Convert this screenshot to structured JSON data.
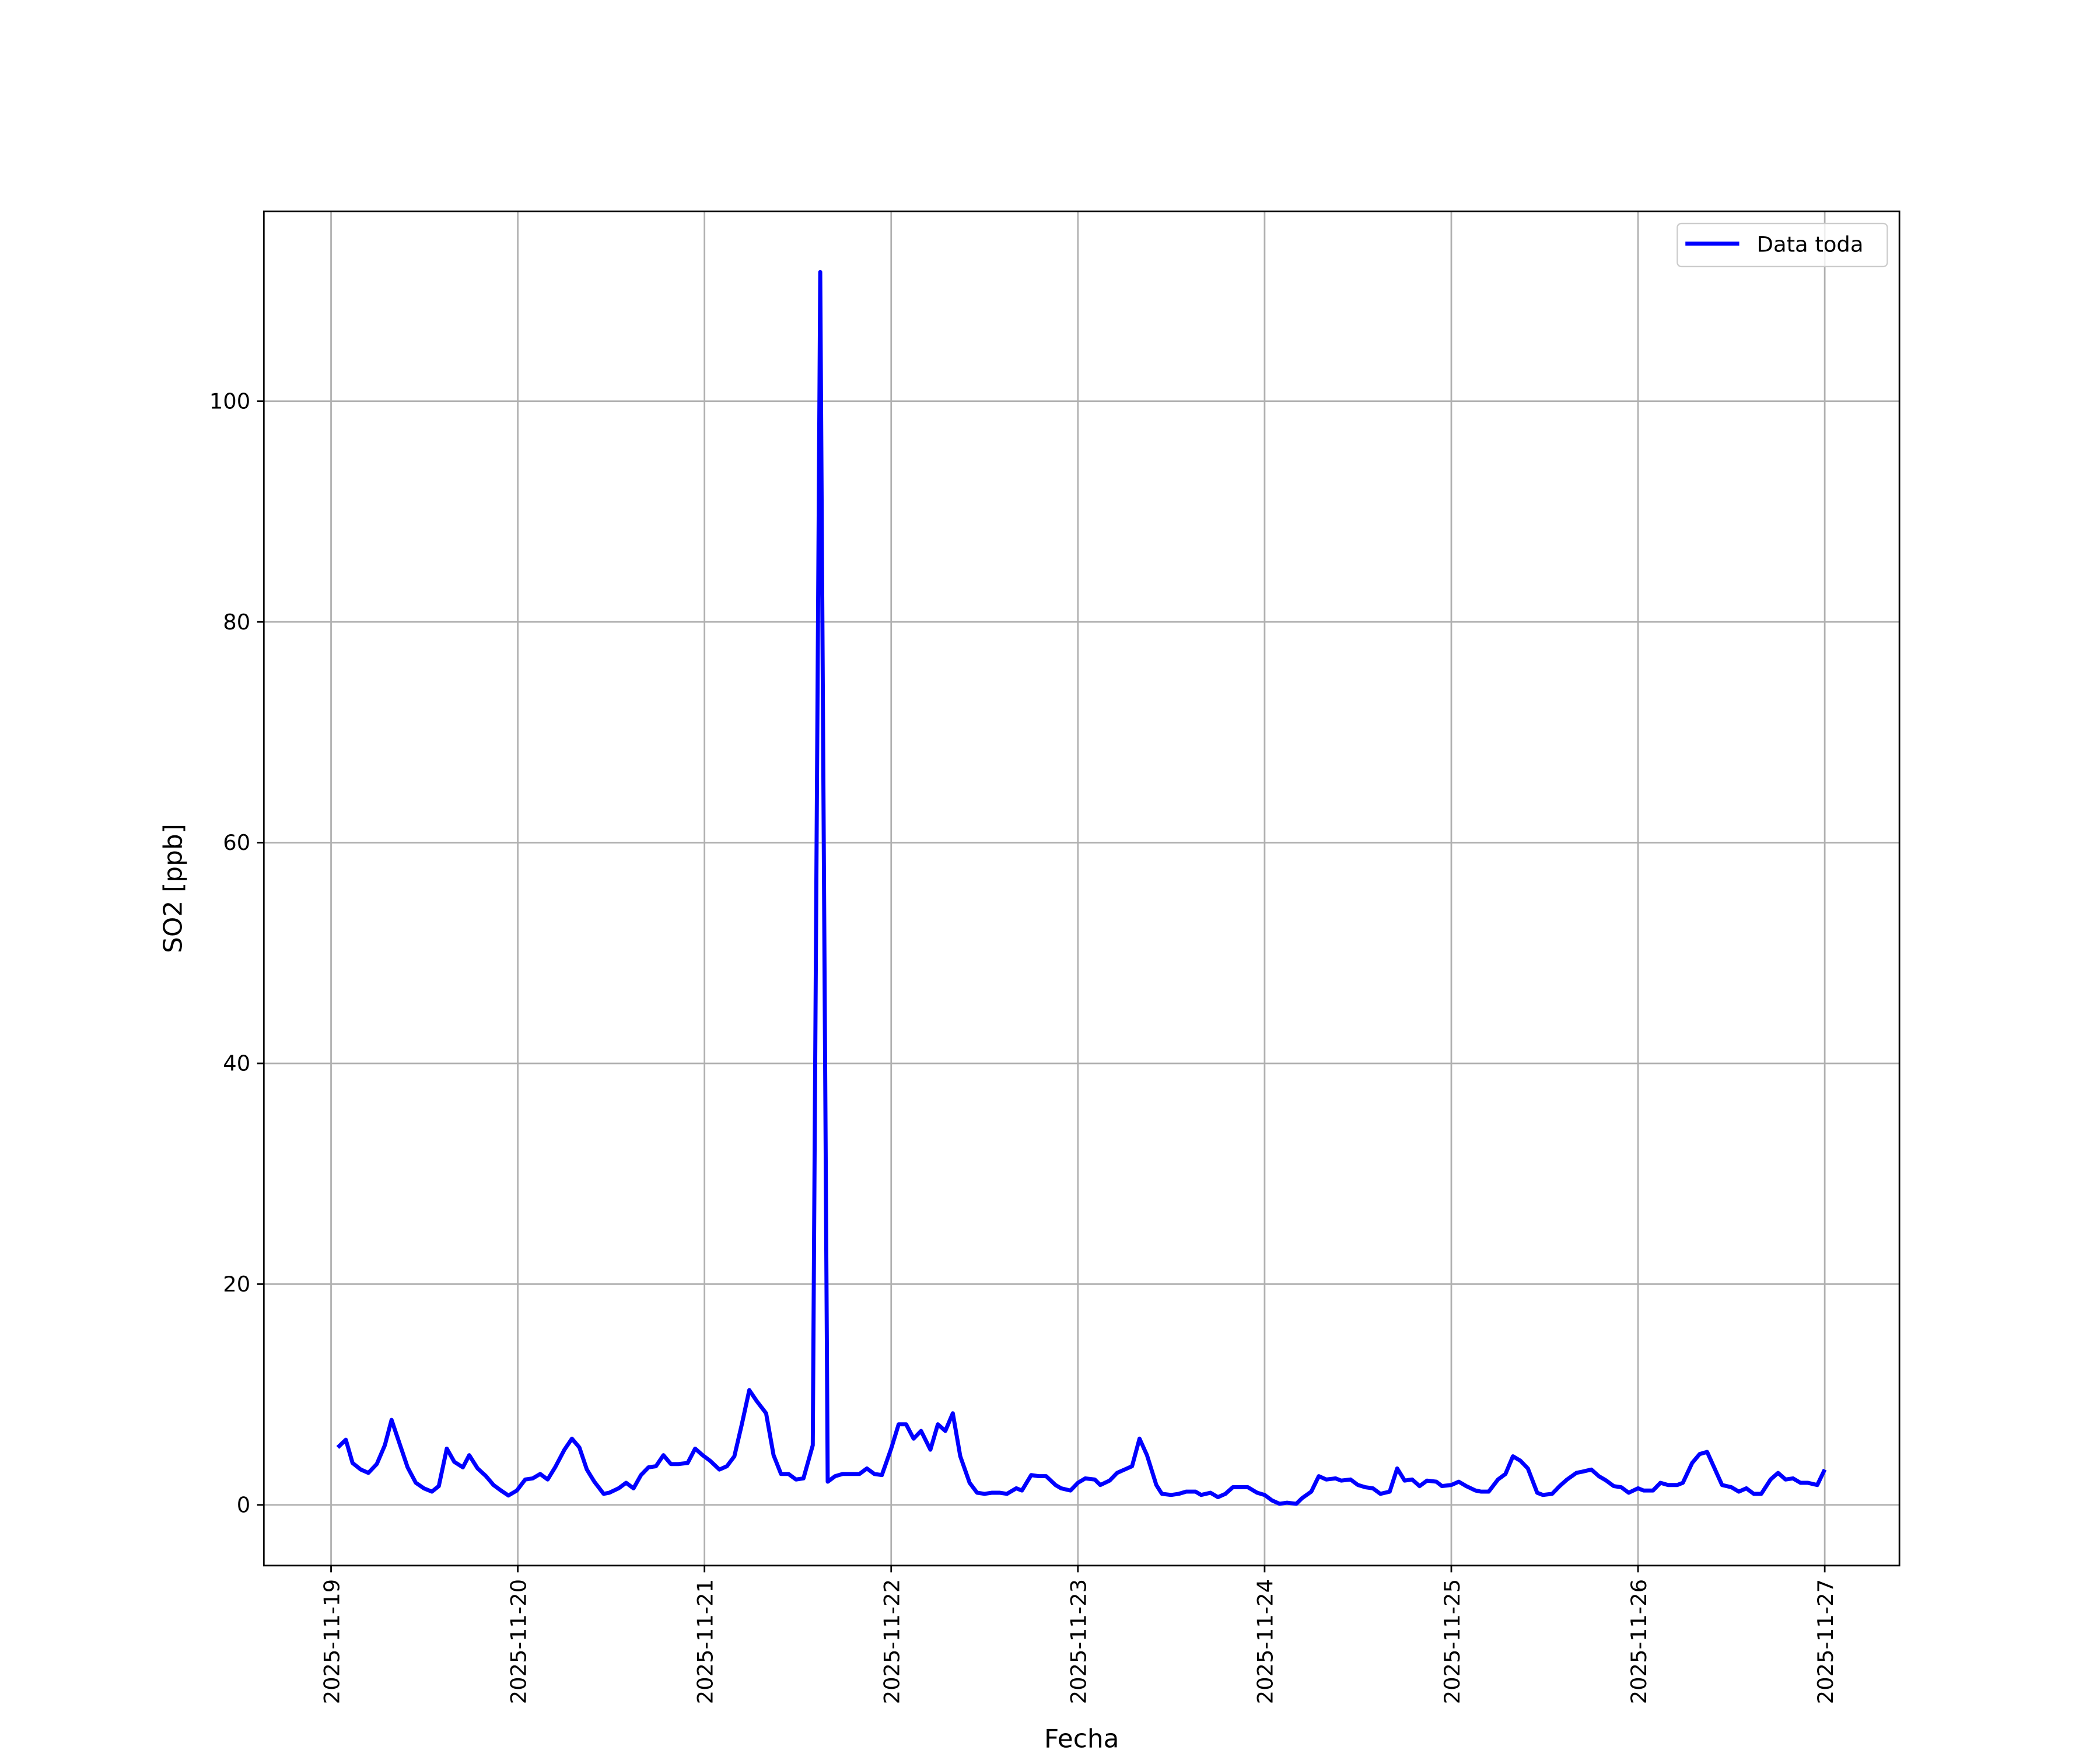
{
  "chart_data": {
    "type": "line",
    "xlabel": "Fecha",
    "ylabel": "SO2 [ppb]",
    "xlim": [
      -0.36,
      8.4
    ],
    "ylim": [
      -5.5,
      117.2
    ],
    "xticks": [
      {
        "value": 0,
        "label": "2025-11-19"
      },
      {
        "value": 1,
        "label": "2025-11-20"
      },
      {
        "value": 2,
        "label": "2025-11-21"
      },
      {
        "value": 3,
        "label": "2025-11-22"
      },
      {
        "value": 4,
        "label": "2025-11-23"
      },
      {
        "value": 5,
        "label": "2025-11-24"
      },
      {
        "value": 6,
        "label": "2025-11-25"
      },
      {
        "value": 7,
        "label": "2025-11-26"
      },
      {
        "value": 8,
        "label": "2025-11-27"
      }
    ],
    "yticks": [
      0,
      20,
      40,
      60,
      80,
      100
    ],
    "grid": true,
    "legend": "upper right",
    "x": [
      0.036,
      0.079,
      0.115,
      0.159,
      0.2,
      0.245,
      0.288,
      0.324,
      0.368,
      0.41,
      0.454,
      0.497,
      0.54,
      0.577,
      0.62,
      0.66,
      0.706,
      0.74,
      0.785,
      0.83,
      0.87,
      0.91,
      0.95,
      0.995,
      1.04,
      1.08,
      1.12,
      1.16,
      1.2,
      1.25,
      1.29,
      1.33,
      1.37,
      1.41,
      1.46,
      1.49,
      1.54,
      1.58,
      1.62,
      1.66,
      1.7,
      1.74,
      1.78,
      1.82,
      1.86,
      1.91,
      1.95,
      1.99,
      2.03,
      2.08,
      2.12,
      2.16,
      2.2,
      2.24,
      2.28,
      2.33,
      2.37,
      2.41,
      2.45,
      2.49,
      2.53,
      2.58,
      2.62,
      2.66,
      2.7,
      2.74,
      2.79,
      2.83,
      2.87,
      2.91,
      2.95,
      3.0,
      3.04,
      3.08,
      3.12,
      3.16,
      3.21,
      3.25,
      3.29,
      3.33,
      3.37,
      3.42,
      3.46,
      3.5,
      3.54,
      3.58,
      3.62,
      3.67,
      3.7,
      3.75,
      3.79,
      3.83,
      3.88,
      3.91,
      3.96,
      4.0,
      4.04,
      4.09,
      4.12,
      4.17,
      4.21,
      4.25,
      4.29,
      4.33,
      4.37,
      4.42,
      4.45,
      4.5,
      4.54,
      4.58,
      4.63,
      4.66,
      4.71,
      4.75,
      4.79,
      4.83,
      4.87,
      4.91,
      4.96,
      5.0,
      5.04,
      5.08,
      5.12,
      5.17,
      5.2,
      5.25,
      5.29,
      5.33,
      5.38,
      5.41,
      5.46,
      5.5,
      5.54,
      5.58,
      5.62,
      5.67,
      5.71,
      5.75,
      5.79,
      5.83,
      5.87,
      5.92,
      5.95,
      6.0,
      6.04,
      6.08,
      6.13,
      6.16,
      6.2,
      6.25,
      6.29,
      6.33,
      6.37,
      6.41,
      6.46,
      6.49,
      6.54,
      6.58,
      6.62,
      6.67,
      6.7,
      6.75,
      6.79,
      6.83,
      6.87,
      6.91,
      6.95,
      7.0,
      7.03,
      7.08,
      7.12,
      7.16,
      7.21,
      7.24,
      7.29,
      7.33,
      7.37,
      7.41,
      7.45,
      7.5,
      7.54,
      7.58,
      7.62,
      7.66,
      7.71,
      7.75,
      7.79,
      7.83,
      7.87,
      7.91,
      7.96,
      8.0
    ],
    "series": [
      {
        "name": "Data toda",
        "color": "#0000ff",
        "values": [
          5.2,
          5.9,
          3.8,
          3.2,
          2.9,
          3.7,
          5.4,
          7.7,
          5.5,
          3.4,
          2.0,
          1.5,
          1.2,
          1.7,
          5.1,
          3.9,
          3.4,
          4.5,
          3.3,
          2.6,
          1.8,
          1.3,
          0.85,
          1.3,
          2.3,
          2.4,
          2.8,
          2.3,
          3.4,
          5.0,
          6.0,
          5.2,
          3.2,
          2.1,
          1.0,
          1.1,
          1.5,
          2.0,
          1.5,
          2.7,
          3.4,
          3.5,
          4.5,
          3.7,
          3.7,
          3.8,
          5.1,
          4.5,
          4.0,
          3.2,
          3.5,
          4.4,
          7.3,
          10.4,
          9.4,
          8.3,
          4.5,
          2.8,
          2.8,
          2.3,
          2.4,
          5.4,
          111.7,
          2.1,
          2.6,
          2.8,
          2.8,
          2.8,
          3.3,
          2.8,
          2.7,
          5.1,
          7.3,
          7.3,
          6.0,
          6.7,
          5.0,
          7.3,
          6.7,
          8.3,
          4.4,
          2.0,
          1.1,
          1.0,
          1.1,
          1.1,
          1.0,
          1.5,
          1.3,
          2.7,
          2.6,
          2.6,
          1.8,
          1.5,
          1.3,
          2.0,
          2.4,
          2.3,
          1.8,
          2.2,
          2.9,
          3.2,
          3.5,
          6.0,
          4.5,
          1.8,
          1.0,
          0.9,
          1.0,
          1.2,
          1.2,
          0.9,
          1.1,
          0.7,
          1.0,
          1.6,
          1.6,
          1.6,
          1.1,
          0.9,
          0.4,
          0.1,
          0.2,
          0.1,
          0.6,
          1.2,
          2.6,
          2.3,
          2.4,
          2.2,
          2.3,
          1.8,
          1.6,
          1.5,
          1.0,
          1.2,
          3.3,
          2.2,
          2.3,
          1.7,
          2.2,
          2.1,
          1.7,
          1.8,
          2.1,
          1.7,
          1.3,
          1.2,
          1.2,
          2.3,
          2.8,
          4.4,
          4.0,
          3.3,
          1.1,
          0.9,
          1.0,
          1.7,
          2.3,
          2.9,
          3.0,
          3.2,
          2.6,
          2.2,
          1.7,
          1.6,
          1.1,
          1.5,
          1.3,
          1.3,
          2.0,
          1.8,
          1.8,
          2.0,
          3.8,
          4.6,
          4.8,
          3.3,
          1.8,
          1.6,
          1.2,
          1.5,
          1.0,
          1.0,
          2.3,
          2.9,
          2.3,
          2.4,
          2.0,
          2.0,
          1.8,
          3.2
        ]
      }
    ]
  }
}
